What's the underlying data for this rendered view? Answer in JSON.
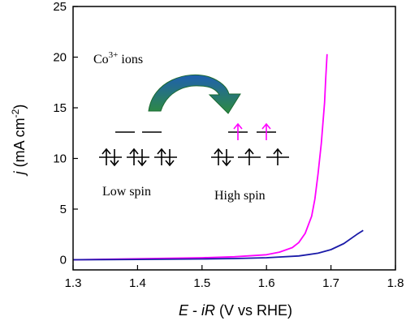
{
  "chart_data": {
    "type": "line",
    "xlabel_italic": "E",
    "xlabel_mid": " - ",
    "xlabel_italic2": "iR",
    "xlabel_rest": " (V vs RHE)",
    "ylabel_italic": "j",
    "ylabel_rest": " (mA cm",
    "ylabel_sup": "-2",
    "ylabel_close": ")",
    "xlim": [
      1.3,
      1.8
    ],
    "ylim": [
      -1,
      25
    ],
    "xticks": [
      1.3,
      1.4,
      1.5,
      1.6,
      1.7,
      1.8
    ],
    "xtick_labels": [
      "1.3",
      "1.4",
      "1.5",
      "1.6",
      "1.7",
      "1.8"
    ],
    "yticks": [
      0,
      5,
      10,
      15,
      20,
      25
    ],
    "ytick_labels": [
      "0",
      "5",
      "10",
      "15",
      "20",
      "25"
    ],
    "series": [
      {
        "color": "#ff00ff",
        "x": [
          1.3,
          1.35,
          1.4,
          1.45,
          1.5,
          1.55,
          1.6,
          1.62,
          1.64,
          1.65,
          1.66,
          1.67,
          1.675,
          1.68,
          1.685,
          1.69,
          1.692,
          1.694
        ],
        "y": [
          0.0,
          0.05,
          0.1,
          0.15,
          0.2,
          0.3,
          0.5,
          0.75,
          1.2,
          1.7,
          2.6,
          4.3,
          6.0,
          8.5,
          11.5,
          15.5,
          18.0,
          20.3
        ]
      },
      {
        "color": "#1a1aa8",
        "x": [
          1.3,
          1.4,
          1.5,
          1.55,
          1.6,
          1.65,
          1.68,
          1.7,
          1.72,
          1.74,
          1.75
        ],
        "y": [
          0.0,
          0.03,
          0.08,
          0.12,
          0.2,
          0.38,
          0.65,
          1.0,
          1.6,
          2.5,
          2.9
        ]
      }
    ]
  },
  "inset": {
    "ion_label": "Co",
    "ion_sup": "3+",
    "ion_suffix": " ions",
    "low_spin_label": "Low spin",
    "high_spin_label": "High spin",
    "arrow_color": "#2e8b40",
    "arrow_highlight": "#1f5fb0",
    "high_spin_electron_color": "#ff00ff"
  }
}
